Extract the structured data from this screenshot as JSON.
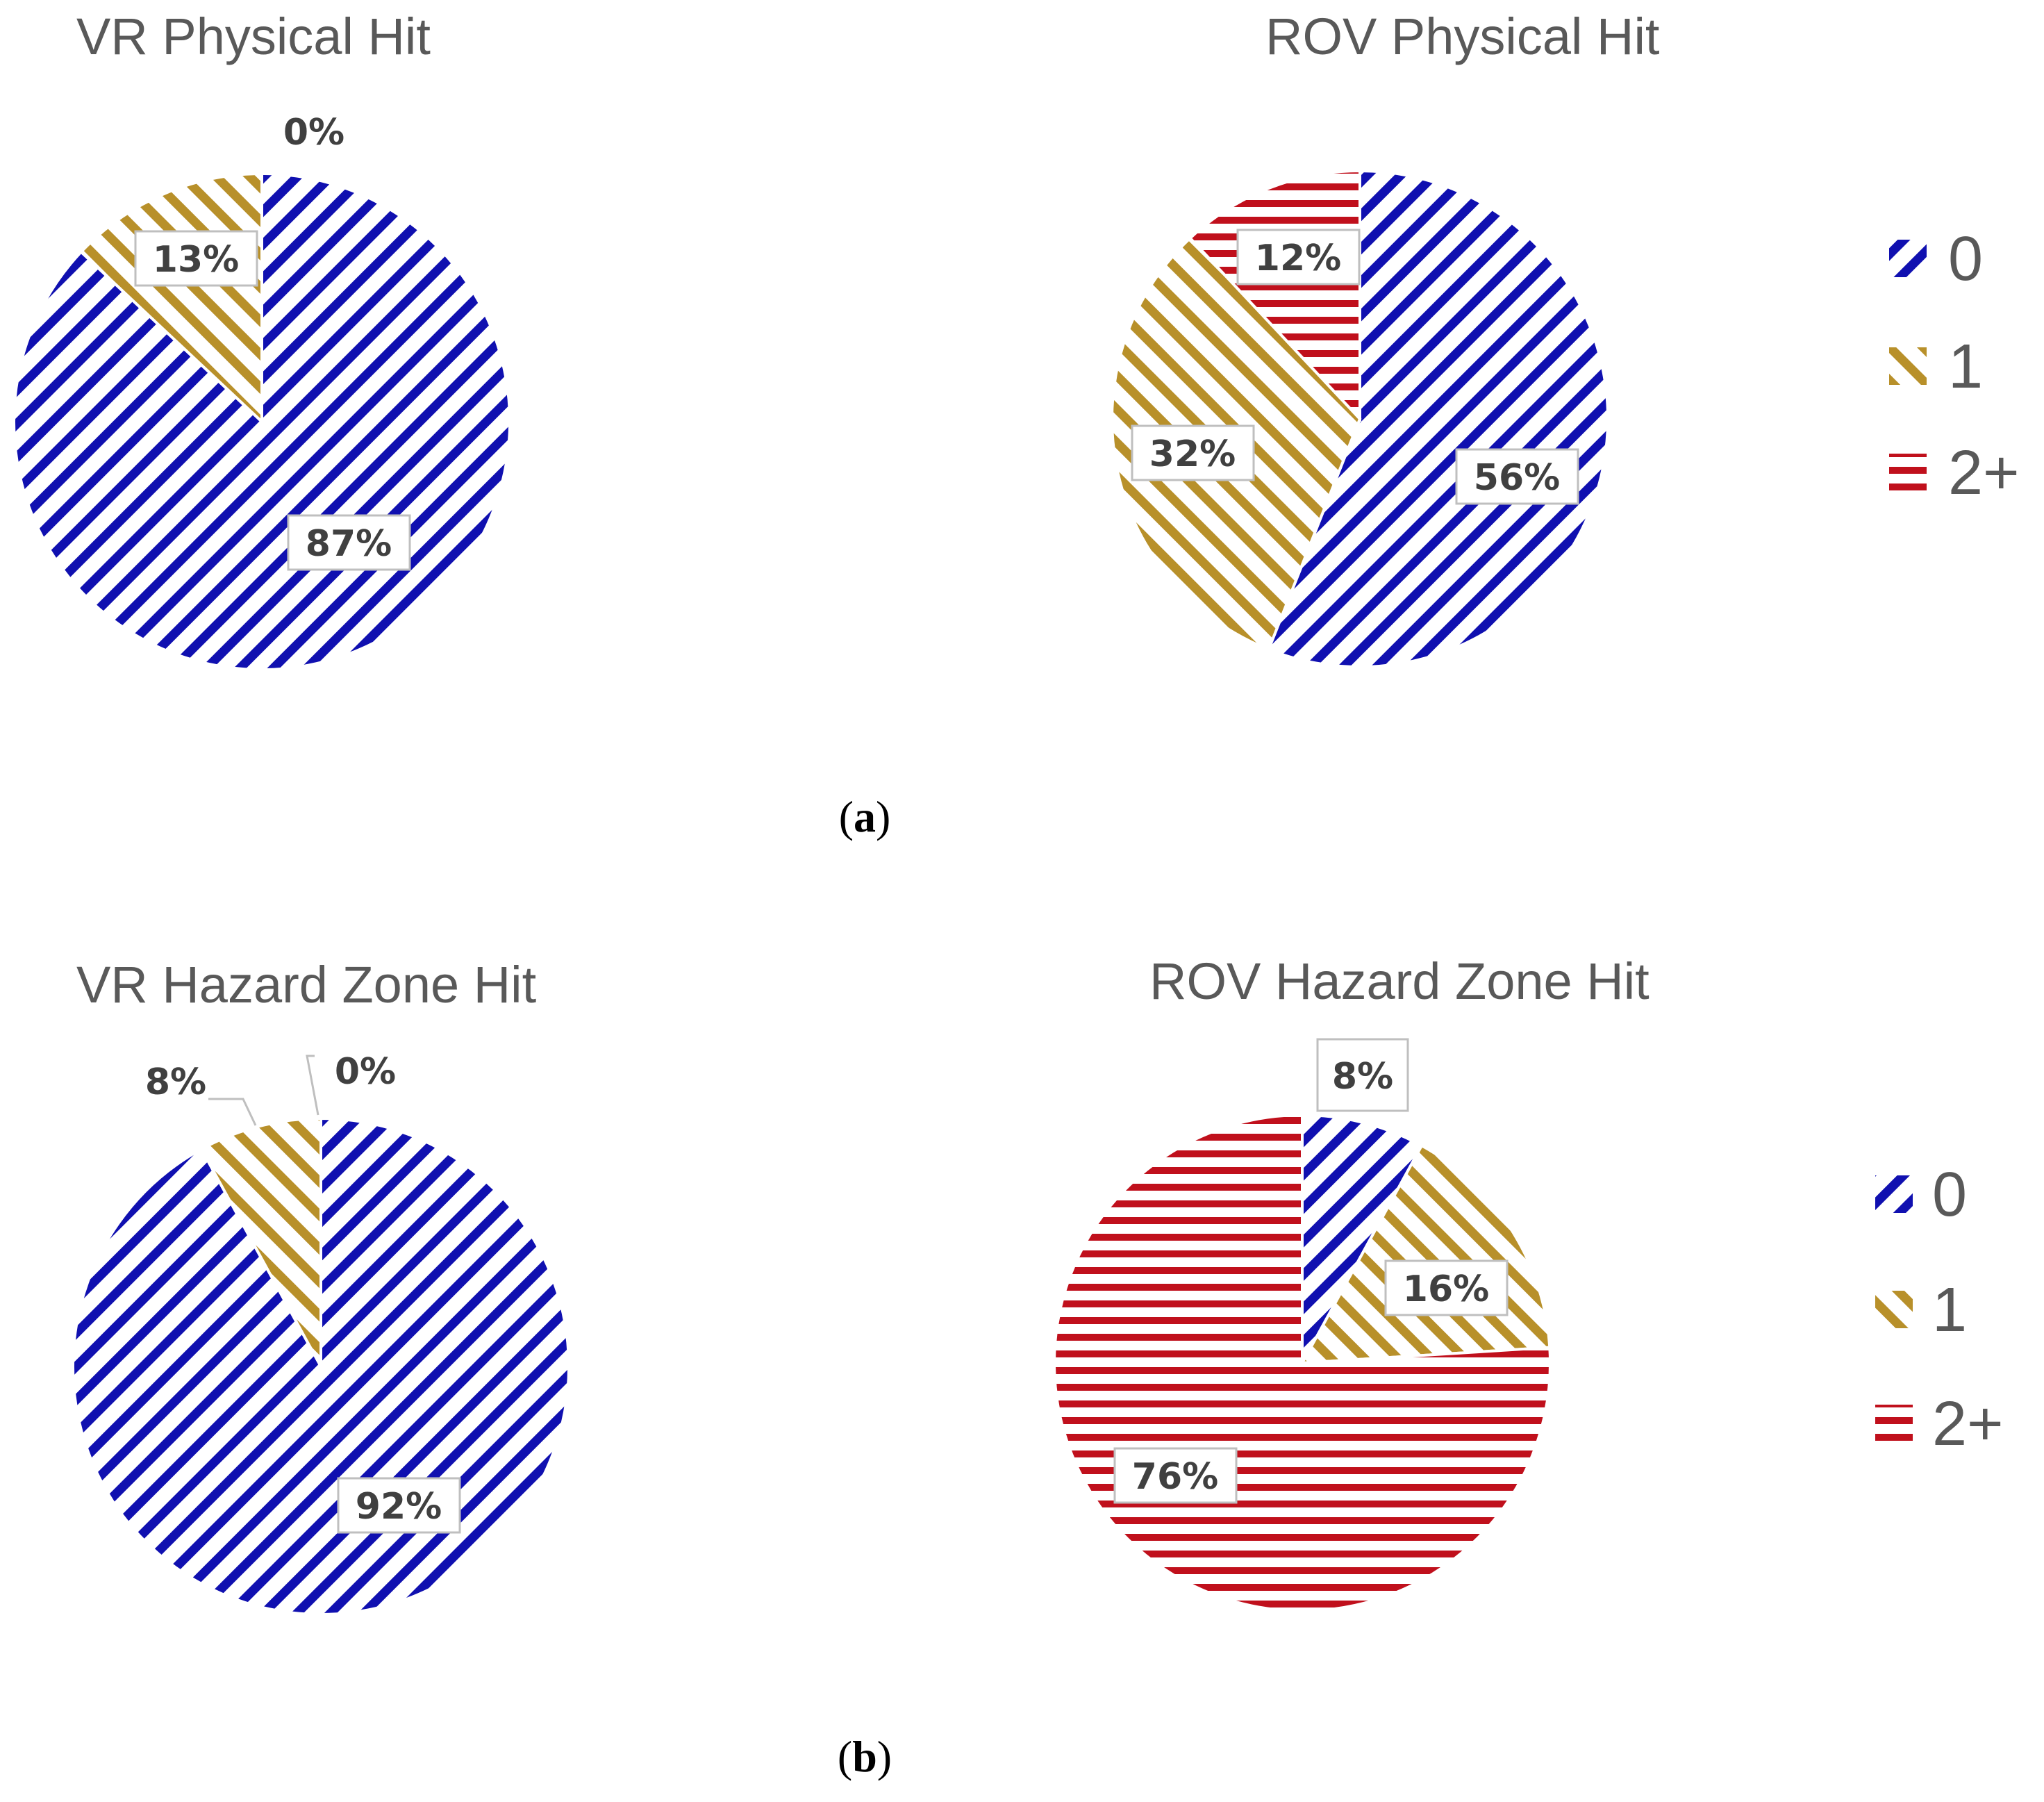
{
  "colors": {
    "zero": "#1010b0",
    "one": "#b8902a",
    "two_plus": "#c0101c"
  },
  "legend": [
    {
      "key": "zero",
      "label": "0",
      "pattern": "diag-down"
    },
    {
      "key": "one",
      "label": "1",
      "pattern": "diag-up"
    },
    {
      "key": "two_plus",
      "label": "2+",
      "pattern": "horiz"
    }
  ],
  "captions": {
    "a": {
      "open": "(",
      "letter": "a",
      "close": ")"
    },
    "b": {
      "open": "(",
      "letter": "b",
      "close": ")"
    }
  },
  "chart_data": [
    {
      "type": "pie",
      "title": "VR Physical Hit",
      "categories": [
        "0",
        "1",
        "2+"
      ],
      "values": [
        87,
        13,
        0
      ],
      "labels": [
        "87%",
        "13%",
        "0%"
      ]
    },
    {
      "type": "pie",
      "title": "ROV Physical Hit",
      "categories": [
        "0",
        "1",
        "2+"
      ],
      "values": [
        56,
        32,
        12
      ],
      "labels": [
        "56%",
        "32%",
        "12%"
      ]
    },
    {
      "type": "pie",
      "title": "VR Hazard Zone Hit",
      "categories": [
        "0",
        "1",
        "2+"
      ],
      "values": [
        92,
        8,
        0
      ],
      "labels": [
        "92%",
        "8%",
        "0%"
      ]
    },
    {
      "type": "pie",
      "title": "ROV Hazard Zone Hit",
      "categories": [
        "0",
        "1",
        "2+"
      ],
      "values": [
        8,
        16,
        76
      ],
      "labels": [
        "8%",
        "16%",
        "76%"
      ]
    }
  ]
}
